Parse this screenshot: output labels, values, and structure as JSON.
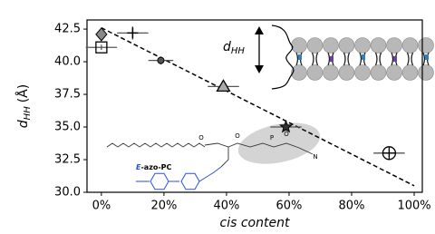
{
  "chart_data": {
    "type": "scatter",
    "xlabel": "cis content",
    "ylabel": {
      "main": "d",
      "sub": "HH",
      "unit": "(Å)"
    },
    "xlim": [
      -4.6,
      102.6
    ],
    "ylim": [
      30,
      43.2
    ],
    "xticks": [
      {
        "value": 0,
        "label": "0%"
      },
      {
        "value": 20,
        "label": "20%"
      },
      {
        "value": 40,
        "label": "40%"
      },
      {
        "value": 60,
        "label": "60%"
      },
      {
        "value": 80,
        "label": "80%"
      },
      {
        "value": 100,
        "label": "100%"
      }
    ],
    "yticks": [
      {
        "value": 30,
        "label": "30.0"
      },
      {
        "value": 32.5,
        "label": "32.5"
      },
      {
        "value": 35,
        "label": "35.0"
      },
      {
        "value": 37.5,
        "label": "37.5"
      },
      {
        "value": 40,
        "label": "40.0"
      },
      {
        "value": 42.5,
        "label": "42.5"
      }
    ],
    "points": [
      {
        "x": 0,
        "y": 42.1,
        "xerr": 1.5,
        "yerr": 0.2,
        "marker": "diamond"
      },
      {
        "x": 0,
        "y": 41.1,
        "xerr": 5,
        "yerr": 0.2,
        "marker": "square"
      },
      {
        "x": 10,
        "y": 42.2,
        "xerr": 5,
        "yerr": 0.5,
        "marker": "plus"
      },
      {
        "x": 19,
        "y": 40.1,
        "xerr": 4,
        "yerr": 0.3,
        "marker": "dot"
      },
      {
        "x": 39,
        "y": 38.1,
        "xerr": 5,
        "yerr": 0.2,
        "marker": "triangle"
      },
      {
        "x": 59,
        "y": 35.0,
        "xerr": 5,
        "yerr": 0.3,
        "marker": "star"
      },
      {
        "x": 92,
        "y": 33.0,
        "xerr": 5,
        "yerr": 0.3,
        "marker": "circleplus"
      }
    ],
    "fit": {
      "x": [
        0,
        100
      ],
      "y": [
        42.6,
        30.5
      ]
    },
    "inset_label": {
      "main": "d",
      "sub": "HH"
    },
    "molecule": {
      "name_prefix": "E",
      "name_rest": "-azo-PC",
      "atoms": [
        "O",
        "O",
        "P",
        "O",
        "N"
      ]
    }
  }
}
